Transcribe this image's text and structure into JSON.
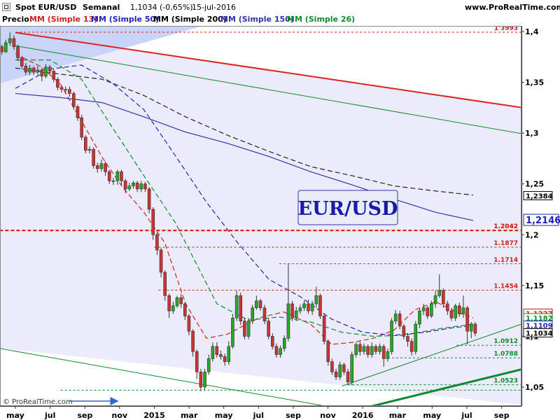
{
  "header": {
    "instrument": "Spot EUR/USD",
    "period": "Semanal",
    "last": "1,1034 (-0,65%)",
    "date": "15-jul-2016",
    "site": "www.ProRealTime.com"
  },
  "legend": [
    {
      "label": "Precio",
      "color": "#000000"
    },
    {
      "label": "MM (Simple 13)",
      "color": "#cc2222"
    },
    {
      "label": "MM (Simple 50)",
      "color": "#2222bb"
    },
    {
      "label": "MM (Simple 200)",
      "color": "#000000"
    },
    {
      "label": "MM (Simple 150)",
      "color": "#3333aa"
    },
    {
      "label": "MM (Simple 26)",
      "color": "#118833"
    }
  ],
  "watermark": "© ProRealTime.com",
  "colors": {
    "up": "#22aa22",
    "down": "#cc3333",
    "sma13": "#cc2222",
    "sma26": "#118833",
    "sma50": "#2222bb",
    "sma150": "#3333aa",
    "sma200": "#222222",
    "zone": "#ebebfb",
    "wedge": "#c8d4f8",
    "res_line": "#dd2222",
    "channel": "#118833"
  },
  "chart_data": {
    "type": "candlestick",
    "title": "EUR/USD",
    "ylim": [
      1.027,
      1.423
    ],
    "y_ticks": [
      "1,4",
      "1,35",
      "1,3",
      "1,25",
      "1,2",
      "1,15",
      "1,1",
      "1,05"
    ],
    "x_labels": [
      "may",
      "jul",
      "sep",
      "nov",
      "2015",
      "mar",
      "may",
      "jul",
      "sep",
      "nov",
      "2016",
      "mar",
      "may",
      "jul",
      "sep"
    ],
    "x_label_months": [
      2014.333,
      2014.5,
      2014.667,
      2014.833,
      2015.0,
      2015.167,
      2015.333,
      2015.5,
      2015.667,
      2015.833,
      2016.0,
      2016.167,
      2016.333,
      2016.5,
      2016.667
    ],
    "price_badges": [
      {
        "label": "1,2384",
        "value": 1.2384,
        "color": "#000000"
      },
      {
        "label": "1,2146",
        "value": 1.2146,
        "color": "#2222bb"
      },
      {
        "label": "1,1227",
        "value": 1.1227,
        "color": "#cc2222"
      },
      {
        "label": "1,1182",
        "value": 1.1182,
        "color": "#118833"
      },
      {
        "label": "1,1109",
        "value": 1.1109,
        "color": "#2222bb"
      },
      {
        "label": "1,1034",
        "value": 1.1034,
        "color": "#000000"
      }
    ],
    "levels": [
      {
        "label": "1'3993",
        "value": 1.3993,
        "color": "#cc2222",
        "style": "dash",
        "x_from": 2014.333
      },
      {
        "label": "1.2042",
        "value": 1.2042,
        "color": "#dd0000",
        "style": "heavy",
        "x_from": 2014.23
      },
      {
        "label": "1.1877",
        "value": 1.1877,
        "color": "#cc2222",
        "style": "dash",
        "x_from": 2015.0
      },
      {
        "label": "1.1714",
        "value": 1.1714,
        "color": "#cc2222",
        "style": "dash",
        "x_from": 2015.6
      },
      {
        "label": "1.1454",
        "value": 1.1454,
        "color": "#cc2222",
        "style": "dash",
        "x_from": 2015.02
      },
      {
        "label": "1.0912",
        "value": 1.0912,
        "color": "#118833",
        "style": "dash",
        "x_from": 2016.45
      },
      {
        "label": "1.0788",
        "value": 1.0788,
        "color": "#118833",
        "style": "dash",
        "x_from": 2016.12
      },
      {
        "label": "1.0523",
        "value": 1.0523,
        "color": "#118833",
        "style": "dash",
        "x_from": 2015.93
      },
      {
        "label": "",
        "value": 1.047,
        "color": "#118833",
        "style": "dash",
        "x_from": 2014.55
      }
    ],
    "trendlines": [
      {
        "name": "resistance",
        "x": [
          2014.333,
          2016.833
        ],
        "y": [
          1.399,
          1.323
        ],
        "color": "#dd2222",
        "width": 2
      },
      {
        "name": "channel-upper",
        "x": [
          2014.333,
          2016.833
        ],
        "y": [
          1.386,
          1.297
        ],
        "color": "#118833",
        "width": 1
      },
      {
        "name": "channel-lower",
        "x": [
          2014.23,
          2015.83
        ],
        "y": [
          1.089,
          1.031
        ],
        "color": "#118833",
        "width": 1
      },
      {
        "name": "support-thin",
        "x": [
          2015.9,
          2016.833
        ],
        "y": [
          1.051,
          1.117
        ],
        "color": "#118833",
        "width": 1
      },
      {
        "name": "support-thick",
        "x": [
          2015.88,
          2016.833
        ],
        "y": [
          1.023,
          1.071
        ],
        "color": "#118833",
        "width": 3
      }
    ],
    "moving_averages": [
      {
        "name": "MM (Simple 13)",
        "style": "dash",
        "x": [
          2014.333,
          2014.45,
          2014.55,
          2014.65,
          2014.75,
          2014.85,
          2014.95,
          2015.05,
          2015.15,
          2015.25,
          2015.35,
          2015.5,
          2015.62,
          2015.75,
          2015.85,
          2015.95,
          2016.05,
          2016.15,
          2016.25,
          2016.35,
          2016.45,
          2016.53
        ],
        "y": [
          1.378,
          1.366,
          1.348,
          1.312,
          1.276,
          1.246,
          1.222,
          1.192,
          1.132,
          1.098,
          1.102,
          1.118,
          1.124,
          1.112,
          1.092,
          1.094,
          1.098,
          1.106,
          1.126,
          1.134,
          1.124,
          1.118
        ]
      },
      {
        "name": "MM (Simple 26)",
        "style": "dash",
        "x": [
          2014.333,
          2014.5,
          2014.65,
          2014.8,
          2014.95,
          2015.1,
          2015.2,
          2015.3,
          2015.45,
          2015.6,
          2015.75,
          2015.9,
          2016.05,
          2016.2,
          2016.35,
          2016.53
        ],
        "y": [
          1.372,
          1.372,
          1.353,
          1.305,
          1.258,
          1.212,
          1.172,
          1.132,
          1.116,
          1.119,
          1.114,
          1.104,
          1.1,
          1.101,
          1.107,
          1.112
        ]
      },
      {
        "name": "MM (Simple 50)",
        "style": "dash",
        "x": [
          2014.333,
          2014.5,
          2014.65,
          2014.8,
          2014.95,
          2015.1,
          2015.25,
          2015.4,
          2015.55,
          2015.7,
          2015.85,
          2016.0,
          2016.15,
          2016.3,
          2016.45,
          2016.53
        ],
        "y": [
          1.344,
          1.363,
          1.367,
          1.349,
          1.323,
          1.278,
          1.232,
          1.192,
          1.156,
          1.139,
          1.117,
          1.104,
          1.101,
          1.104,
          1.109,
          1.11
        ]
      },
      {
        "name": "MM (Simple 150)",
        "style": "solid",
        "x": [
          2014.333,
          2014.55,
          2014.75,
          2014.95,
          2015.15,
          2015.35,
          2015.55,
          2015.75,
          2015.95,
          2016.15,
          2016.35,
          2016.53
        ],
        "y": [
          1.339,
          1.335,
          1.33,
          1.316,
          1.301,
          1.29,
          1.277,
          1.262,
          1.249,
          1.235,
          1.222,
          1.214
        ]
      },
      {
        "name": "MM (Simple 200)",
        "style": "dash",
        "x": [
          2014.333,
          2014.55,
          2014.75,
          2014.95,
          2015.15,
          2015.35,
          2015.55,
          2015.75,
          2015.95,
          2016.15,
          2016.35,
          2016.53
        ],
        "y": [
          1.364,
          1.358,
          1.353,
          1.337,
          1.316,
          1.298,
          1.282,
          1.267,
          1.258,
          1.248,
          1.243,
          1.239
        ]
      }
    ],
    "candles": [
      [
        2014.23,
        1.383,
        1.388,
        1.389,
        1.38
      ],
      [
        2014.249,
        1.388,
        1.385,
        1.393,
        1.383
      ],
      [
        2014.268,
        1.385,
        1.38,
        1.387,
        1.377
      ],
      [
        2014.287,
        1.38,
        1.389,
        1.392,
        1.379
      ],
      [
        2014.307,
        1.389,
        1.393,
        1.399,
        1.386
      ],
      [
        2014.326,
        1.393,
        1.385,
        1.396,
        1.382
      ],
      [
        2014.345,
        1.385,
        1.374,
        1.387,
        1.371
      ],
      [
        2014.364,
        1.374,
        1.366,
        1.376,
        1.363
      ],
      [
        2014.383,
        1.366,
        1.36,
        1.369,
        1.357
      ],
      [
        2014.402,
        1.36,
        1.364,
        1.367,
        1.357
      ],
      [
        2014.421,
        1.364,
        1.36,
        1.366,
        1.357
      ],
      [
        2014.44,
        1.36,
        1.362,
        1.366,
        1.357
      ],
      [
        2014.46,
        1.362,
        1.356,
        1.364,
        1.351
      ],
      [
        2014.479,
        1.356,
        1.365,
        1.368,
        1.354
      ],
      [
        2014.498,
        1.365,
        1.361,
        1.367,
        1.358
      ],
      [
        2014.517,
        1.361,
        1.353,
        1.363,
        1.35
      ],
      [
        2014.536,
        1.353,
        1.345,
        1.355,
        1.342
      ],
      [
        2014.555,
        1.345,
        1.343,
        1.347,
        1.34
      ],
      [
        2014.574,
        1.343,
        1.343,
        1.346,
        1.339
      ],
      [
        2014.593,
        1.343,
        1.339,
        1.346,
        1.336
      ],
      [
        2014.613,
        1.339,
        1.326,
        1.341,
        1.323
      ],
      [
        2014.632,
        1.326,
        1.315,
        1.328,
        1.312
      ],
      [
        2014.651,
        1.315,
        1.296,
        1.318,
        1.293
      ],
      [
        2014.67,
        1.296,
        1.283,
        1.298,
        1.28
      ],
      [
        2014.689,
        1.283,
        1.284,
        1.287,
        1.28
      ],
      [
        2014.708,
        1.284,
        1.268,
        1.286,
        1.265
      ],
      [
        2014.727,
        1.268,
        1.265,
        1.271,
        1.261
      ],
      [
        2014.746,
        1.265,
        1.27,
        1.274,
        1.262
      ],
      [
        2014.765,
        1.27,
        1.262,
        1.272,
        1.258
      ],
      [
        2014.784,
        1.262,
        1.253,
        1.264,
        1.25
      ],
      [
        2014.803,
        1.253,
        1.253,
        1.256,
        1.249
      ],
      [
        2014.823,
        1.253,
        1.262,
        1.264,
        1.249
      ],
      [
        2014.842,
        1.262,
        1.253,
        1.264,
        1.249
      ],
      [
        2014.861,
        1.253,
        1.245,
        1.255,
        1.241
      ],
      [
        2014.88,
        1.245,
        1.248,
        1.251,
        1.243
      ],
      [
        2014.899,
        1.248,
        1.251,
        1.253,
        1.245
      ],
      [
        2014.918,
        1.251,
        1.245,
        1.253,
        1.242
      ],
      [
        2014.937,
        1.245,
        1.25,
        1.253,
        1.242
      ],
      [
        2014.956,
        1.25,
        1.245,
        1.252,
        1.242
      ],
      [
        2014.975,
        1.245,
        1.225,
        1.247,
        1.221
      ],
      [
        2014.994,
        1.225,
        1.2,
        1.227,
        1.195
      ],
      [
        2015.013,
        1.2,
        1.185,
        1.202,
        1.18
      ],
      [
        2015.032,
        1.185,
        1.163,
        1.187,
        1.158
      ],
      [
        2015.051,
        1.163,
        1.14,
        1.165,
        1.135
      ],
      [
        2015.071,
        1.14,
        1.125,
        1.142,
        1.118
      ],
      [
        2015.09,
        1.125,
        1.13,
        1.134,
        1.122
      ],
      [
        2015.109,
        1.13,
        1.138,
        1.14,
        1.128
      ],
      [
        2015.128,
        1.138,
        1.132,
        1.142,
        1.128
      ],
      [
        2015.147,
        1.132,
        1.12,
        1.134,
        1.116
      ],
      [
        2015.166,
        1.12,
        1.105,
        1.122,
        1.101
      ],
      [
        2015.185,
        1.105,
        1.085,
        1.107,
        1.08
      ],
      [
        2015.204,
        1.085,
        1.065,
        1.087,
        1.058
      ],
      [
        2015.223,
        1.065,
        1.05,
        1.068,
        1.046
      ],
      [
        2015.242,
        1.05,
        1.065,
        1.068,
        1.047
      ],
      [
        2015.261,
        1.065,
        1.078,
        1.082,
        1.062
      ],
      [
        2015.28,
        1.078,
        1.09,
        1.094,
        1.075
      ],
      [
        2015.3,
        1.09,
        1.082,
        1.094,
        1.079
      ],
      [
        2015.319,
        1.082,
        1.08,
        1.086,
        1.077
      ],
      [
        2015.338,
        1.08,
        1.075,
        1.083,
        1.071
      ],
      [
        2015.357,
        1.075,
        1.09,
        1.095,
        1.072
      ],
      [
        2015.376,
        1.09,
        1.118,
        1.122,
        1.088
      ],
      [
        2015.395,
        1.118,
        1.14,
        1.145,
        1.115
      ],
      [
        2015.414,
        1.14,
        1.115,
        1.143,
        1.111
      ],
      [
        2015.433,
        1.115,
        1.1,
        1.118,
        1.097
      ],
      [
        2015.452,
        1.1,
        1.115,
        1.118,
        1.097
      ],
      [
        2015.471,
        1.115,
        1.128,
        1.131,
        1.112
      ],
      [
        2015.49,
        1.128,
        1.135,
        1.14,
        1.126
      ],
      [
        2015.509,
        1.135,
        1.128,
        1.137,
        1.125
      ],
      [
        2015.529,
        1.128,
        1.115,
        1.131,
        1.112
      ],
      [
        2015.548,
        1.115,
        1.1,
        1.118,
        1.097
      ],
      [
        2015.567,
        1.1,
        1.09,
        1.103,
        1.087
      ],
      [
        2015.586,
        1.09,
        1.082,
        1.093,
        1.079
      ],
      [
        2015.605,
        1.082,
        1.088,
        1.091,
        1.079
      ],
      [
        2015.624,
        1.088,
        1.098,
        1.101,
        1.085
      ],
      [
        2015.643,
        1.098,
        1.132,
        1.171,
        1.095
      ],
      [
        2015.662,
        1.132,
        1.118,
        1.135,
        1.115
      ],
      [
        2015.681,
        1.118,
        1.125,
        1.129,
        1.115
      ],
      [
        2015.7,
        1.125,
        1.128,
        1.131,
        1.122
      ],
      [
        2015.719,
        1.128,
        1.132,
        1.135,
        1.125
      ],
      [
        2015.739,
        1.132,
        1.125,
        1.136,
        1.122
      ],
      [
        2015.758,
        1.125,
        1.132,
        1.135,
        1.121
      ],
      [
        2015.777,
        1.132,
        1.14,
        1.149,
        1.128
      ],
      [
        2015.796,
        1.14,
        1.12,
        1.142,
        1.117
      ],
      [
        2015.815,
        1.12,
        1.095,
        1.122,
        1.092
      ],
      [
        2015.834,
        1.095,
        1.075,
        1.097,
        1.071
      ],
      [
        2015.853,
        1.075,
        1.065,
        1.078,
        1.062
      ],
      [
        2015.872,
        1.065,
        1.06,
        1.068,
        1.057
      ],
      [
        2015.891,
        1.06,
        1.072,
        1.075,
        1.057
      ],
      [
        2015.91,
        1.072,
        1.065,
        1.074,
        1.062
      ],
      [
        2015.929,
        1.065,
        1.055,
        1.068,
        1.052
      ],
      [
        2015.948,
        1.055,
        1.082,
        1.085,
        1.052
      ],
      [
        2015.968,
        1.082,
        1.092,
        1.094,
        1.079
      ],
      [
        2015.987,
        1.092,
        1.085,
        1.095,
        1.081
      ],
      [
        2016.006,
        1.085,
        1.09,
        1.093,
        1.082
      ],
      [
        2016.025,
        1.09,
        1.082,
        1.092,
        1.079
      ],
      [
        2016.044,
        1.082,
        1.09,
        1.094,
        1.079
      ],
      [
        2016.063,
        1.09,
        1.085,
        1.092,
        1.082
      ],
      [
        2016.082,
        1.085,
        1.09,
        1.093,
        1.082
      ],
      [
        2016.101,
        1.09,
        1.078,
        1.092,
        1.07
      ],
      [
        2016.12,
        1.078,
        1.085,
        1.088,
        1.075
      ],
      [
        2016.139,
        1.085,
        1.115,
        1.118,
        1.082
      ],
      [
        2016.158,
        1.115,
        1.122,
        1.126,
        1.112
      ],
      [
        2016.178,
        1.122,
        1.11,
        1.125,
        1.107
      ],
      [
        2016.197,
        1.11,
        1.1,
        1.112,
        1.097
      ],
      [
        2016.216,
        1.1,
        1.095,
        1.103,
        1.09
      ],
      [
        2016.235,
        1.095,
        1.085,
        1.098,
        1.081
      ],
      [
        2016.254,
        1.085,
        1.112,
        1.115,
        1.082
      ],
      [
        2016.273,
        1.112,
        1.125,
        1.128,
        1.108
      ],
      [
        2016.292,
        1.125,
        1.128,
        1.132,
        1.121
      ],
      [
        2016.311,
        1.128,
        1.12,
        1.13,
        1.117
      ],
      [
        2016.33,
        1.12,
        1.132,
        1.135,
        1.118
      ],
      [
        2016.349,
        1.132,
        1.14,
        1.145,
        1.128
      ],
      [
        2016.368,
        1.14,
        1.145,
        1.161,
        1.138
      ],
      [
        2016.387,
        1.145,
        1.132,
        1.147,
        1.128
      ],
      [
        2016.407,
        1.132,
        1.125,
        1.135,
        1.121
      ],
      [
        2016.426,
        1.125,
        1.118,
        1.128,
        1.115
      ],
      [
        2016.445,
        1.118,
        1.13,
        1.132,
        1.115
      ],
      [
        2016.464,
        1.13,
        1.122,
        1.133,
        1.119
      ],
      [
        2016.483,
        1.122,
        1.128,
        1.14,
        1.118
      ],
      [
        2016.502,
        1.128,
        1.105,
        1.13,
        1.092
      ],
      [
        2016.521,
        1.105,
        1.112,
        1.114,
        1.098
      ],
      [
        2016.54,
        1.112,
        1.103,
        1.114,
        1.1
      ]
    ]
  }
}
